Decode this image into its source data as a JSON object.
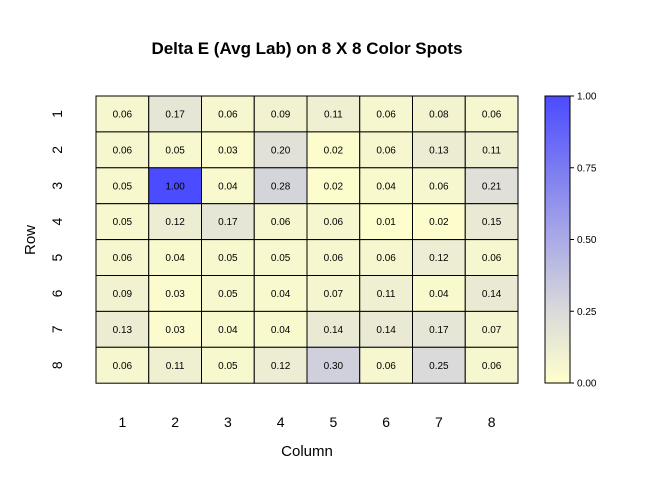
{
  "chart_data": {
    "type": "heatmap",
    "title": "Delta E (Avg Lab) on 8 X 8 Color Spots",
    "xlabel": "Column",
    "ylabel": "Row",
    "x_categories": [
      "1",
      "2",
      "3",
      "4",
      "5",
      "6",
      "7",
      "8"
    ],
    "y_categories": [
      "1",
      "2",
      "3",
      "4",
      "5",
      "6",
      "7",
      "8"
    ],
    "values": [
      [
        0.06,
        0.17,
        0.06,
        0.09,
        0.11,
        0.06,
        0.08,
        0.06
      ],
      [
        0.06,
        0.05,
        0.03,
        0.2,
        0.02,
        0.06,
        0.13,
        0.11
      ],
      [
        0.05,
        1.0,
        0.04,
        0.28,
        0.02,
        0.04,
        0.06,
        0.21
      ],
      [
        0.05,
        0.12,
        0.17,
        0.06,
        0.06,
        0.01,
        0.02,
        0.15
      ],
      [
        0.06,
        0.04,
        0.05,
        0.05,
        0.06,
        0.06,
        0.12,
        0.06
      ],
      [
        0.09,
        0.03,
        0.05,
        0.04,
        0.07,
        0.11,
        0.04,
        0.14
      ],
      [
        0.13,
        0.03,
        0.04,
        0.04,
        0.14,
        0.14,
        0.17,
        0.07
      ],
      [
        0.06,
        0.11,
        0.05,
        0.12,
        0.3,
        0.06,
        0.25,
        0.06
      ]
    ],
    "colorbar": {
      "range": [
        0,
        1
      ],
      "ticks": [
        "0.00",
        "0.25",
        "0.50",
        "0.75",
        "1.00"
      ],
      "colors": {
        "low": "#ffffcc",
        "mid": "#dadada",
        "high": "#4b4bff"
      }
    }
  }
}
